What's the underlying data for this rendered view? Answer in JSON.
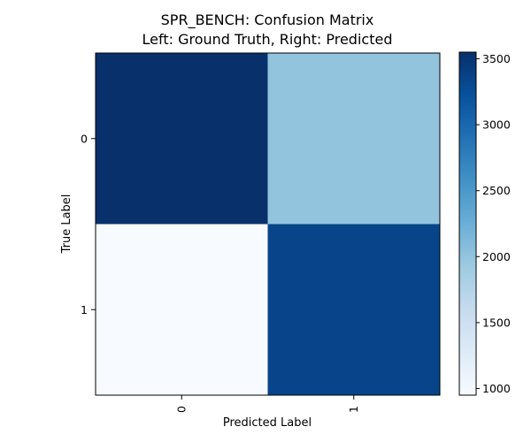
{
  "chart_data": {
    "type": "heatmap",
    "title": "SPR_BENCH: Confusion Matrix",
    "subtitle": "Left: Ground Truth, Right: Predicted",
    "xlabel": "Predicted Label",
    "ylabel": "True Label",
    "x_categories": [
      "0",
      "1"
    ],
    "y_categories": [
      "0",
      "1"
    ],
    "values": [
      [
        3550,
        2000
      ],
      [
        950,
        3350
      ]
    ],
    "colormap": "Blues",
    "colorbar": {
      "min": 950,
      "max": 3550,
      "ticks": [
        1000,
        1500,
        2000,
        2500,
        3000,
        3500
      ],
      "tick_labels": [
        "1000",
        "1500",
        "2000",
        "2500",
        "3000",
        "3500"
      ]
    }
  }
}
